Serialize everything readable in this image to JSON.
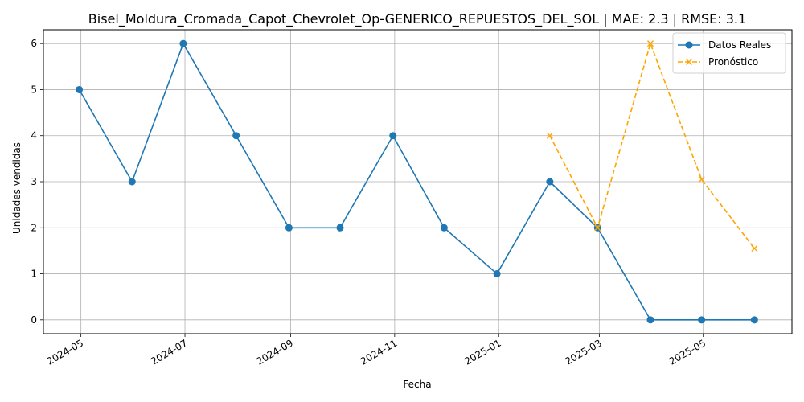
{
  "chart_data": {
    "type": "line",
    "title": "Bisel_Moldura_Cromada_Capot_Chevrolet_Op-GENERICO_REPUESTOS_DEL_SOL | MAE: 2.3 | RMSE: 3.1",
    "xlabel": "Fecha",
    "ylabel": "Unidades vendidas",
    "x_ticks": [
      "2024-05",
      "2024-07",
      "2024-09",
      "2024-11",
      "2025-01",
      "2025-03",
      "2025-05"
    ],
    "y_ticks": [
      "0",
      "1",
      "2",
      "3",
      "4",
      "5",
      "6"
    ],
    "ylim": [
      -0.3,
      6.3
    ],
    "xlim": [
      "2024-04-09",
      "2025-06-22"
    ],
    "grid": true,
    "legend_position": "top-right",
    "series": [
      {
        "name": "Datos Reales",
        "color": "#1f77b4",
        "style": "solid",
        "marker": "circle",
        "points": [
          {
            "x": "2024-04-30",
            "y": 5
          },
          {
            "x": "2024-05-31",
            "y": 3
          },
          {
            "x": "2024-06-30",
            "y": 6
          },
          {
            "x": "2024-07-31",
            "y": 4
          },
          {
            "x": "2024-08-31",
            "y": 2
          },
          {
            "x": "2024-09-30",
            "y": 2
          },
          {
            "x": "2024-10-31",
            "y": 4
          },
          {
            "x": "2024-11-30",
            "y": 2
          },
          {
            "x": "2024-12-31",
            "y": 1
          },
          {
            "x": "2025-01-31",
            "y": 3
          },
          {
            "x": "2025-02-28",
            "y": 2
          },
          {
            "x": "2025-03-31",
            "y": 0
          },
          {
            "x": "2025-04-30",
            "y": 0
          },
          {
            "x": "2025-05-31",
            "y": 0
          }
        ]
      },
      {
        "name": "Pronóstico",
        "color": "#ffa500",
        "style": "dashed",
        "marker": "x",
        "points": [
          {
            "x": "2025-01-31",
            "y": 4
          },
          {
            "x": "2025-02-28",
            "y": 2
          },
          {
            "x": "2025-03-31",
            "y": 6
          },
          {
            "x": "2025-04-30",
            "y": 3.05
          },
          {
            "x": "2025-05-31",
            "y": 1.55
          }
        ]
      }
    ]
  }
}
